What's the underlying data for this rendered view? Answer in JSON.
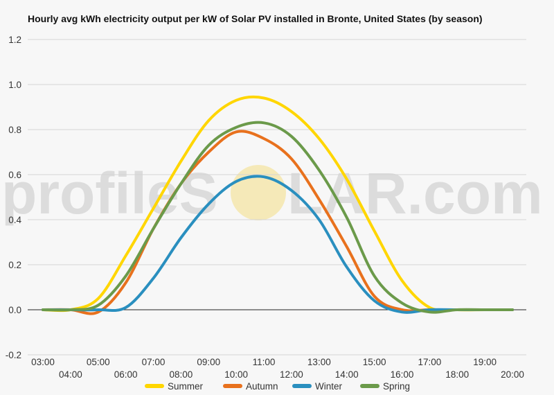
{
  "watermark": {
    "left_text": "profileS",
    "right_text": "LAR.com",
    "sun_color": "#f5e9b8"
  },
  "chart_data": {
    "type": "line",
    "title": "Hourly avg kWh electricity output per kW of Solar PV installed in Bronte, United States (by season)",
    "xlabel": "",
    "ylabel": "",
    "x": [
      "03:00",
      "04:00",
      "05:00",
      "06:00",
      "07:00",
      "08:00",
      "09:00",
      "10:00",
      "11:00",
      "12:00",
      "13:00",
      "14:00",
      "15:00",
      "16:00",
      "17:00",
      "18:00",
      "19:00",
      "20:00"
    ],
    "ylim": [
      -0.2,
      1.2
    ],
    "yticks": [
      "-0.2",
      "0.0",
      "0.2",
      "0.4",
      "0.6",
      "0.8",
      "1.0",
      "1.2"
    ],
    "grid": true,
    "legend": "bottom",
    "series": [
      {
        "name": "Summer",
        "color": "#ffd600",
        "values": [
          0,
          0,
          0.05,
          0.24,
          0.45,
          0.66,
          0.84,
          0.93,
          0.94,
          0.88,
          0.76,
          0.58,
          0.35,
          0.13,
          0.01,
          0,
          0,
          0
        ]
      },
      {
        "name": "Autumn",
        "color": "#e8711d",
        "values": [
          0,
          0,
          -0.01,
          0.12,
          0.36,
          0.56,
          0.7,
          0.79,
          0.76,
          0.67,
          0.49,
          0.28,
          0.06,
          0.0,
          0,
          0,
          0,
          0
        ]
      },
      {
        "name": "Winter",
        "color": "#2a8fbf",
        "values": [
          0,
          0,
          0,
          0.01,
          0.14,
          0.32,
          0.47,
          0.57,
          0.59,
          0.53,
          0.4,
          0.19,
          0.04,
          -0.01,
          0,
          0,
          0,
          0
        ]
      },
      {
        "name": "Spring",
        "color": "#6b9a4a",
        "values": [
          0,
          0,
          0.02,
          0.15,
          0.36,
          0.56,
          0.73,
          0.81,
          0.83,
          0.77,
          0.62,
          0.41,
          0.15,
          0.03,
          -0.01,
          0,
          0,
          0
        ]
      }
    ]
  }
}
